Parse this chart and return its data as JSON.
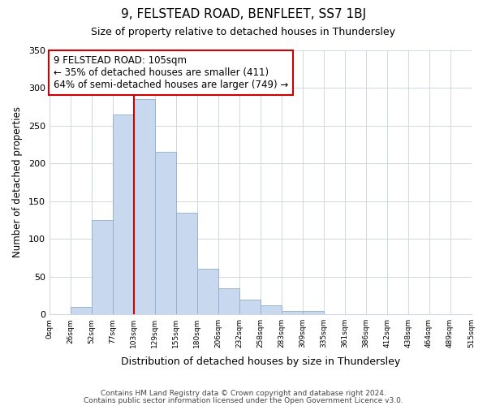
{
  "title": "9, FELSTEAD ROAD, BENFLEET, SS7 1BJ",
  "subtitle": "Size of property relative to detached houses in Thundersley",
  "xlabel": "Distribution of detached houses by size in Thundersley",
  "ylabel": "Number of detached properties",
  "footnote1": "Contains HM Land Registry data © Crown copyright and database right 2024.",
  "footnote2": "Contains public sector information licensed under the Open Government Licence v3.0.",
  "bin_labels": [
    "0sqm",
    "26sqm",
    "52sqm",
    "77sqm",
    "103sqm",
    "129sqm",
    "155sqm",
    "180sqm",
    "206sqm",
    "232sqm",
    "258sqm",
    "283sqm",
    "309sqm",
    "335sqm",
    "361sqm",
    "386sqm",
    "412sqm",
    "438sqm",
    "464sqm",
    "489sqm",
    "515sqm"
  ],
  "bar_heights": [
    0,
    10,
    125,
    265,
    285,
    215,
    135,
    60,
    35,
    20,
    12,
    5,
    5,
    0,
    0,
    0,
    0,
    0,
    0,
    0
  ],
  "bar_color": "#c8d8ee",
  "bar_edge_color": "#90aed0",
  "grid_color": "#d0d8e0",
  "property_line_x": 4,
  "property_line_color": "#cc0000",
  "annotation_text": "9 FELSTEAD ROAD: 105sqm\n← 35% of detached houses are smaller (411)\n64% of semi-detached houses are larger (749) →",
  "annotation_box_color": "#cc0000",
  "ylim": [
    0,
    350
  ],
  "yticks": [
    0,
    50,
    100,
    150,
    200,
    250,
    300,
    350
  ],
  "background_color": "#ffffff",
  "plot_bg_color": "#ffffff",
  "title_fontsize": 11,
  "subtitle_fontsize": 9
}
